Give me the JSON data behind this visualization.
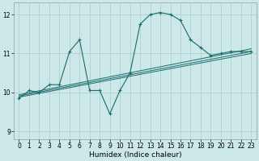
{
  "title": "",
  "xlabel": "Humidex (Indice chaleur)",
  "bg_color": "#cce8e8",
  "grid_color": "#aacccc",
  "line_color": "#1a6b6b",
  "xlim": [
    -0.5,
    23.5
  ],
  "ylim": [
    8.8,
    12.3
  ],
  "yticks": [
    9,
    10,
    11,
    12
  ],
  "xticks": [
    0,
    1,
    2,
    3,
    4,
    5,
    6,
    7,
    8,
    9,
    10,
    11,
    12,
    13,
    14,
    15,
    16,
    17,
    18,
    19,
    20,
    21,
    22,
    23
  ],
  "main_x": [
    0,
    1,
    2,
    3,
    4,
    5,
    6,
    7,
    8,
    9,
    10,
    11,
    12,
    13,
    14,
    15,
    16,
    17,
    18,
    19,
    20,
    21,
    22,
    23
  ],
  "main_y": [
    9.85,
    10.05,
    10.0,
    10.2,
    10.2,
    11.05,
    11.35,
    10.05,
    10.05,
    9.45,
    10.05,
    10.5,
    11.75,
    12.0,
    12.05,
    12.0,
    11.85,
    11.35,
    11.15,
    10.95,
    11.0,
    11.05,
    11.05,
    11.05
  ],
  "reg_lines": [
    {
      "x0": 0,
      "y0": 9.88,
      "x1": 23,
      "y1": 11.0
    },
    {
      "x0": 0,
      "y0": 9.91,
      "x1": 23,
      "y1": 11.05
    },
    {
      "x0": 0,
      "y0": 9.94,
      "x1": 23,
      "y1": 11.12
    }
  ]
}
